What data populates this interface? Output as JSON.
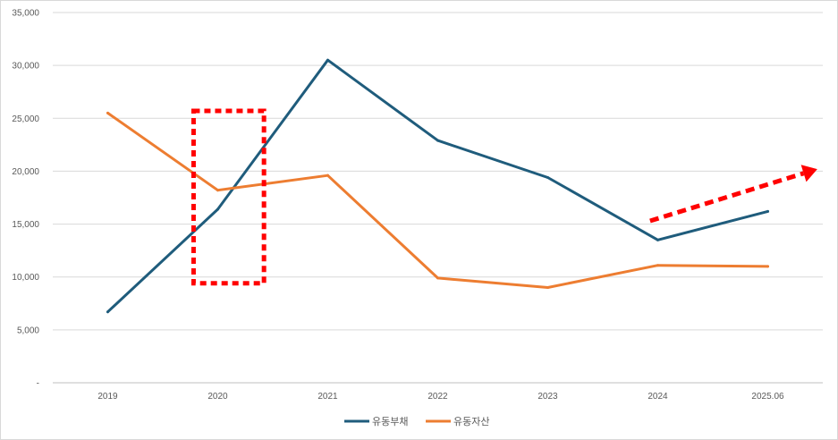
{
  "chart_data": {
    "type": "line",
    "categories": [
      "2019",
      "2020",
      "2021",
      "2022",
      "2023",
      "2024",
      "2025.06"
    ],
    "series": [
      {
        "name": "유동부채",
        "color": "#1f5c7c",
        "values": [
          6700,
          16400,
          30500,
          22900,
          19400,
          13500,
          16200
        ]
      },
      {
        "name": "유동자산",
        "color": "#ed7d31",
        "values": [
          25500,
          18200,
          19600,
          9900,
          9000,
          11100,
          11000
        ]
      }
    ],
    "y_ticks": [
      {
        "value": 0,
        "label": "-"
      },
      {
        "value": 5000,
        "label": "5,000"
      },
      {
        "value": 10000,
        "label": "10,000"
      },
      {
        "value": 15000,
        "label": "15,000"
      },
      {
        "value": 20000,
        "label": "20,000"
      },
      {
        "value": 25000,
        "label": "25,000"
      },
      {
        "value": 30000,
        "label": "30,000"
      },
      {
        "value": 35000,
        "label": "35,000"
      }
    ],
    "ylim": [
      0,
      35000
    ],
    "grid": true,
    "legend_position": "bottom",
    "annotations": [
      {
        "type": "dashed-rectangle",
        "color": "#ff0000",
        "x_start": 0.78,
        "x_end": 1.42,
        "y_low": 9400,
        "y_high": 25700
      },
      {
        "type": "dashed-arrow",
        "color": "#ff0000",
        "from": {
          "x": 4.93,
          "y": 15300
        },
        "to": {
          "x": 6.45,
          "y": 20200
        }
      }
    ]
  }
}
